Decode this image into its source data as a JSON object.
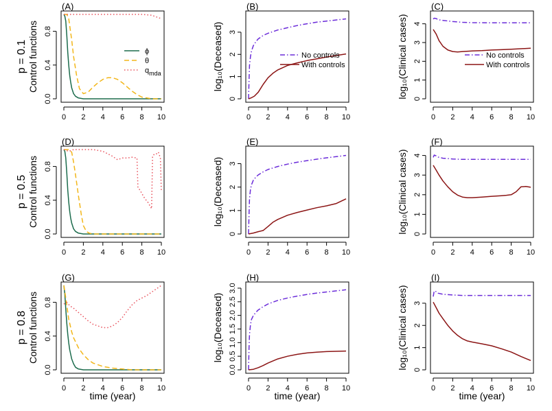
{
  "figure": {
    "xlabel": "time (year)",
    "row_labels": [
      "p = 0.1",
      "p = 0.5",
      "p = 0.8"
    ]
  },
  "colors": {
    "phi": "#1b6b4c",
    "theta": "#f2b619",
    "q_mda": "#e8505b",
    "no_controls": "#6a2bd9",
    "with_controls": "#8b1414"
  },
  "chart_data": [
    {
      "panel": "(A)",
      "type": "line",
      "row": 0,
      "col": 0,
      "ylabel": "Control functions",
      "xlim": [
        0,
        10
      ],
      "ylim": [
        0,
        1
      ],
      "yticks": [
        "0.0",
        "0.4",
        "0.8"
      ],
      "ytick_values": [
        0,
        0.4,
        0.8
      ],
      "xticks": [
        "0",
        "2",
        "4",
        "6",
        "8",
        "10"
      ],
      "legend": [
        "ϕ",
        "θ",
        "q_mda"
      ],
      "series": [
        {
          "name": "ϕ",
          "key": "phi",
          "x": [
            0,
            0.1,
            0.2,
            0.3,
            0.4,
            0.5,
            0.6,
            0.7,
            0.8,
            1,
            1.2,
            1.5,
            2,
            3,
            10
          ],
          "y": [
            1,
            0.98,
            0.92,
            0.75,
            0.55,
            0.4,
            0.28,
            0.2,
            0.13,
            0.06,
            0.03,
            0.01,
            0,
            0,
            0
          ]
        },
        {
          "name": "θ",
          "key": "theta",
          "x": [
            0,
            0.3,
            0.5,
            0.8,
            1,
            1.3,
            1.6,
            2,
            2.5,
            3,
            3.5,
            4,
            4.5,
            5,
            5.5,
            6,
            6.5,
            7,
            7.5,
            8,
            8.5,
            9,
            10
          ],
          "y": [
            1,
            1,
            0.95,
            0.7,
            0.5,
            0.28,
            0.12,
            0.06,
            0.08,
            0.14,
            0.19,
            0.23,
            0.25,
            0.25,
            0.23,
            0.19,
            0.14,
            0.09,
            0.05,
            0.02,
            0.01,
            0,
            0
          ]
        },
        {
          "name": "q_mda",
          "key": "q_mda",
          "x": [
            0,
            1,
            2,
            3,
            4,
            5,
            6,
            7,
            8,
            9,
            9.5,
            10
          ],
          "y": [
            1,
            1,
            1,
            1,
            1,
            1,
            1,
            1,
            1,
            0.99,
            0.97,
            0.95
          ]
        }
      ]
    },
    {
      "panel": "(B)",
      "type": "line",
      "row": 0,
      "col": 1,
      "ylabel": "log₁₀(Deceased)",
      "xlim": [
        0,
        10
      ],
      "ylim": [
        0,
        3.8
      ],
      "yticks": [
        "0",
        "1",
        "2",
        "3"
      ],
      "ytick_values": [
        0,
        1,
        2,
        3
      ],
      "xticks": [
        "0",
        "2",
        "4",
        "6",
        "8",
        "10"
      ],
      "legend": [
        "No controls",
        "With controls"
      ],
      "legend_pos": "center-right",
      "series": [
        {
          "name": "No controls",
          "key": "no_controls",
          "x": [
            0,
            0.05,
            0.1,
            0.2,
            0.3,
            0.5,
            0.8,
            1,
            1.5,
            2,
            3,
            4,
            5,
            6,
            7,
            8,
            9,
            10
          ],
          "y": [
            0,
            0.8,
            1.5,
            1.9,
            2.15,
            2.4,
            2.6,
            2.7,
            2.85,
            2.95,
            3.1,
            3.2,
            3.3,
            3.38,
            3.45,
            3.5,
            3.55,
            3.6
          ]
        },
        {
          "name": "With controls",
          "key": "with_controls",
          "x": [
            0,
            0.3,
            0.6,
            1,
            1.5,
            2,
            2.5,
            3,
            4,
            5,
            6,
            7,
            8,
            9,
            10
          ],
          "y": [
            0,
            0.05,
            0.12,
            0.3,
            0.65,
            0.95,
            1.15,
            1.3,
            1.5,
            1.62,
            1.72,
            1.8,
            1.88,
            1.95,
            2.02
          ]
        }
      ]
    },
    {
      "panel": "(C)",
      "type": "line",
      "row": 0,
      "col": 2,
      "ylabel": "log₁₀(Clinical cases)",
      "xlim": [
        0,
        10
      ],
      "ylim": [
        0,
        4.5
      ],
      "yticks": [
        "0",
        "1",
        "2",
        "3",
        "4"
      ],
      "ytick_values": [
        0,
        1,
        2,
        3,
        4
      ],
      "xticks": [
        "0",
        "2",
        "4",
        "6",
        "8",
        "10"
      ],
      "legend": [
        "No controls",
        "With controls"
      ],
      "legend_pos": "center-right",
      "series": [
        {
          "name": "No controls",
          "key": "no_controls",
          "x": [
            0,
            0.1,
            0.3,
            0.5,
            1,
            2,
            3,
            4,
            6,
            8,
            10
          ],
          "y": [
            4.25,
            4.3,
            4.28,
            4.22,
            4.18,
            4.12,
            4.08,
            4.06,
            4.05,
            4.05,
            4.05
          ]
        },
        {
          "name": "With controls",
          "key": "with_controls",
          "x": [
            0,
            0.3,
            0.6,
            1,
            1.5,
            2,
            2.5,
            3,
            4,
            5,
            6,
            7,
            8,
            9,
            10
          ],
          "y": [
            3.7,
            3.45,
            3.1,
            2.8,
            2.6,
            2.52,
            2.5,
            2.52,
            2.55,
            2.57,
            2.6,
            2.62,
            2.64,
            2.67,
            2.7
          ]
        }
      ]
    },
    {
      "panel": "(D)",
      "type": "line",
      "row": 1,
      "col": 0,
      "ylabel": "Control functions",
      "xlim": [
        0,
        10
      ],
      "ylim": [
        0,
        1
      ],
      "yticks": [
        "0.0",
        "0.4",
        "0.8"
      ],
      "ytick_values": [
        0,
        0.4,
        0.8
      ],
      "xticks": [
        "0",
        "2",
        "4",
        "6",
        "8",
        "10"
      ],
      "series": [
        {
          "name": "ϕ",
          "key": "phi",
          "x": [
            0,
            0.1,
            0.2,
            0.3,
            0.4,
            0.5,
            0.6,
            0.7,
            0.8,
            1,
            1.2,
            1.5,
            2,
            10
          ],
          "y": [
            1,
            0.98,
            0.9,
            0.72,
            0.52,
            0.38,
            0.27,
            0.19,
            0.13,
            0.06,
            0.03,
            0.01,
            0,
            0
          ]
        },
        {
          "name": "θ",
          "key": "theta",
          "x": [
            0,
            0.5,
            0.8,
            1,
            1.2,
            1.5,
            1.8,
            2,
            2.3,
            2.6,
            3,
            10
          ],
          "y": [
            1,
            1,
            0.97,
            0.85,
            0.7,
            0.45,
            0.22,
            0.1,
            0.03,
            0.01,
            0,
            0
          ]
        },
        {
          "name": "q_mda",
          "key": "q_mda",
          "x": [
            0,
            0.5,
            1,
            2,
            3,
            4,
            5,
            5.5,
            6,
            6.5,
            7,
            7.5,
            7.6,
            7.8,
            8,
            8.3,
            8.6,
            8.9,
            9,
            9.05,
            9.1,
            9.3,
            9.5,
            9.7,
            9.9,
            10
          ],
          "y": [
            1,
            0.98,
            1,
            1,
            1,
            0.98,
            0.92,
            0.88,
            0.9,
            0.9,
            0.91,
            0.9,
            0.55,
            0.52,
            0.48,
            0.42,
            0.38,
            0.32,
            0.3,
            0.6,
            0.92,
            0.95,
            0.95,
            0.97,
            0.9,
            0.5
          ]
        }
      ]
    },
    {
      "panel": "(E)",
      "type": "line",
      "row": 1,
      "col": 1,
      "ylabel": "log₁₀(Deceased)",
      "xlim": [
        0,
        10
      ],
      "ylim": [
        0,
        3.6
      ],
      "yticks": [
        "0",
        "1",
        "2",
        "3"
      ],
      "ytick_values": [
        0,
        1,
        2,
        3
      ],
      "xticks": [
        "0",
        "2",
        "4",
        "6",
        "8",
        "10"
      ],
      "series": [
        {
          "name": "No controls",
          "key": "no_controls",
          "x": [
            0,
            0.05,
            0.1,
            0.2,
            0.3,
            0.5,
            0.8,
            1,
            1.5,
            2,
            3,
            4,
            5,
            6,
            7,
            8,
            9,
            10
          ],
          "y": [
            0,
            0.8,
            1.5,
            1.9,
            2.1,
            2.3,
            2.45,
            2.52,
            2.65,
            2.75,
            2.88,
            2.98,
            3.06,
            3.13,
            3.19,
            3.25,
            3.3,
            3.35
          ]
        },
        {
          "name": "With controls",
          "key": "with_controls",
          "x": [
            0,
            0.5,
            1,
            1.5,
            2,
            2.5,
            3,
            4,
            5,
            6,
            7,
            8,
            9,
            9.5,
            10
          ],
          "y": [
            0,
            0.04,
            0.1,
            0.15,
            0.32,
            0.5,
            0.62,
            0.8,
            0.92,
            1.02,
            1.12,
            1.2,
            1.3,
            1.4,
            1.5
          ]
        }
      ]
    },
    {
      "panel": "(F)",
      "type": "line",
      "row": 1,
      "col": 2,
      "ylabel": "log₁₀(Clinical cases)",
      "xlim": [
        0,
        10
      ],
      "ylim": [
        0,
        4.3
      ],
      "yticks": [
        "0",
        "1",
        "2",
        "3",
        "4"
      ],
      "ytick_values": [
        0,
        1,
        2,
        3,
        4
      ],
      "xticks": [
        "0",
        "2",
        "4",
        "6",
        "8",
        "10"
      ],
      "series": [
        {
          "name": "No controls",
          "key": "no_controls",
          "x": [
            0,
            0.1,
            0.3,
            0.5,
            1,
            2,
            3,
            4,
            6,
            8,
            10
          ],
          "y": [
            3.9,
            4.02,
            3.98,
            3.92,
            3.86,
            3.82,
            3.8,
            3.8,
            3.8,
            3.8,
            3.8
          ]
        },
        {
          "name": "With controls",
          "key": "with_controls",
          "x": [
            0,
            0.3,
            0.6,
            1,
            1.5,
            2,
            2.5,
            3,
            3.5,
            4,
            5,
            6,
            7,
            7.5,
            8,
            8.5,
            9,
            9.5,
            10
          ],
          "y": [
            3.5,
            3.25,
            3.0,
            2.7,
            2.4,
            2.15,
            1.98,
            1.88,
            1.85,
            1.85,
            1.88,
            1.92,
            1.95,
            1.97,
            2.0,
            2.15,
            2.4,
            2.42,
            2.38
          ]
        }
      ]
    },
    {
      "panel": "(G)",
      "type": "line",
      "row": 2,
      "col": 0,
      "ylabel": "Control functions",
      "xlim": [
        0,
        10
      ],
      "ylim": [
        0,
        1
      ],
      "yticks": [
        "0.0",
        "0.4",
        "0.8"
      ],
      "ytick_values": [
        0,
        0.4,
        0.8
      ],
      "xticks": [
        "0",
        "2",
        "4",
        "6",
        "8",
        "10"
      ],
      "series": [
        {
          "name": "ϕ",
          "key": "phi",
          "x": [
            0,
            0.1,
            0.2,
            0.3,
            0.4,
            0.5,
            0.6,
            0.8,
            1,
            1.2,
            1.5,
            2,
            10
          ],
          "y": [
            1,
            0.9,
            0.72,
            0.55,
            0.42,
            0.32,
            0.24,
            0.13,
            0.07,
            0.03,
            0.01,
            0,
            0
          ]
        },
        {
          "name": "θ",
          "key": "theta",
          "x": [
            0,
            0.2,
            0.5,
            0.8,
            1,
            1.5,
            2,
            2.5,
            3,
            4,
            5,
            6,
            7,
            8,
            9,
            10
          ],
          "y": [
            1,
            0.85,
            0.6,
            0.45,
            0.38,
            0.26,
            0.18,
            0.12,
            0.08,
            0.04,
            0.02,
            0.01,
            0,
            0,
            0,
            0
          ]
        },
        {
          "name": "q_mda",
          "key": "q_mda",
          "x": [
            0,
            0.3,
            0.6,
            1,
            1.5,
            2,
            2.5,
            3,
            3.5,
            4,
            4.5,
            5,
            5.5,
            6,
            6.5,
            7,
            7.5,
            8,
            8.5,
            9,
            9.5,
            10
          ],
          "y": [
            0.78,
            0.8,
            0.76,
            0.73,
            0.68,
            0.63,
            0.58,
            0.54,
            0.52,
            0.5,
            0.5,
            0.52,
            0.56,
            0.62,
            0.7,
            0.77,
            0.82,
            0.85,
            0.88,
            0.92,
            0.96,
            1.0
          ]
        }
      ]
    },
    {
      "panel": "(H)",
      "type": "line",
      "row": 2,
      "col": 1,
      "ylabel": "log₁₀(Deceased)",
      "xlim": [
        0,
        10
      ],
      "ylim": [
        0,
        3.1
      ],
      "yticks": [
        "0.0",
        "0.5",
        "1.0",
        "1.5",
        "2.0",
        "2.5",
        "3.0"
      ],
      "ytick_values": [
        0,
        0.5,
        1,
        1.5,
        2,
        2.5,
        3
      ],
      "xticks": [
        "0",
        "2",
        "4",
        "6",
        "8",
        "10"
      ],
      "series": [
        {
          "name": "No controls",
          "key": "no_controls",
          "x": [
            0,
            0.05,
            0.1,
            0.2,
            0.3,
            0.5,
            0.8,
            1,
            1.5,
            2,
            3,
            4,
            5,
            6,
            7,
            8,
            9,
            10
          ],
          "y": [
            0,
            0.8,
            1.3,
            1.65,
            1.85,
            2.0,
            2.13,
            2.2,
            2.32,
            2.42,
            2.55,
            2.64,
            2.71,
            2.77,
            2.82,
            2.86,
            2.9,
            2.94
          ]
        },
        {
          "name": "With controls",
          "key": "with_controls",
          "x": [
            0,
            0.5,
            1,
            1.5,
            2,
            3,
            4,
            5,
            6,
            7,
            8,
            9,
            10
          ],
          "y": [
            0,
            0.02,
            0.08,
            0.16,
            0.25,
            0.4,
            0.5,
            0.57,
            0.62,
            0.65,
            0.67,
            0.68,
            0.69
          ]
        }
      ]
    },
    {
      "panel": "(I)",
      "type": "line",
      "row": 2,
      "col": 2,
      "ylabel": "log₁₀(Clinical cases)",
      "xlim": [
        0,
        10
      ],
      "ylim": [
        0,
        3.8
      ],
      "yticks": [
        "0",
        "1",
        "2",
        "3"
      ],
      "ytick_values": [
        0,
        1,
        2,
        3
      ],
      "xticks": [
        "0",
        "2",
        "4",
        "6",
        "8",
        "10"
      ],
      "series": [
        {
          "name": "No controls",
          "key": "no_controls",
          "x": [
            0,
            0.1,
            0.3,
            0.5,
            1,
            2,
            3,
            4,
            6,
            8,
            10
          ],
          "y": [
            3.3,
            3.55,
            3.52,
            3.45,
            3.4,
            3.37,
            3.35,
            3.35,
            3.35,
            3.35,
            3.35
          ]
        },
        {
          "name": "With controls",
          "key": "with_controls",
          "x": [
            0,
            0.3,
            0.6,
            1,
            1.5,
            2,
            2.5,
            3,
            3.5,
            4,
            5,
            6,
            7,
            8,
            9,
            10
          ],
          "y": [
            3.05,
            2.8,
            2.55,
            2.3,
            2.0,
            1.75,
            1.55,
            1.4,
            1.3,
            1.25,
            1.17,
            1.08,
            0.95,
            0.8,
            0.6,
            0.42
          ]
        }
      ]
    }
  ]
}
